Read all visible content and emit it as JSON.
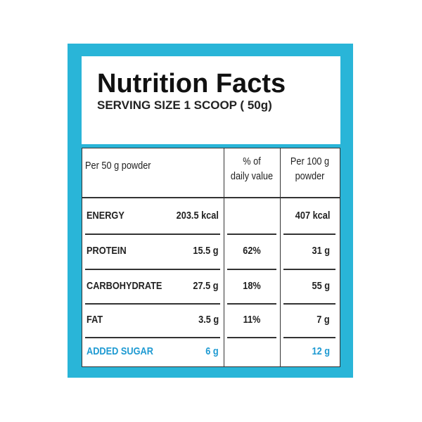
{
  "header": {
    "title": "Nutrition Facts",
    "serving": "SERVING SIZE 1 SCOOP ( 50g)"
  },
  "table": {
    "headers": [
      "Per 50 g powder",
      "% of\ndaily value",
      "Per 100 g\npowder"
    ],
    "rows": [
      [
        "ENERGY",
        "203.5 kcal",
        null,
        "407 kcal"
      ],
      [
        "PROTEIN",
        "15.5 g",
        "62%",
        "31 g"
      ],
      [
        "CARBOHYDRATE",
        "27.5 g",
        "18%",
        "55 g"
      ],
      [
        "FAT",
        "3.5 g",
        "11%",
        "7 g"
      ],
      [
        "ADDED SUGAR",
        "6 g",
        null,
        "12 g"
      ]
    ]
  }
}
